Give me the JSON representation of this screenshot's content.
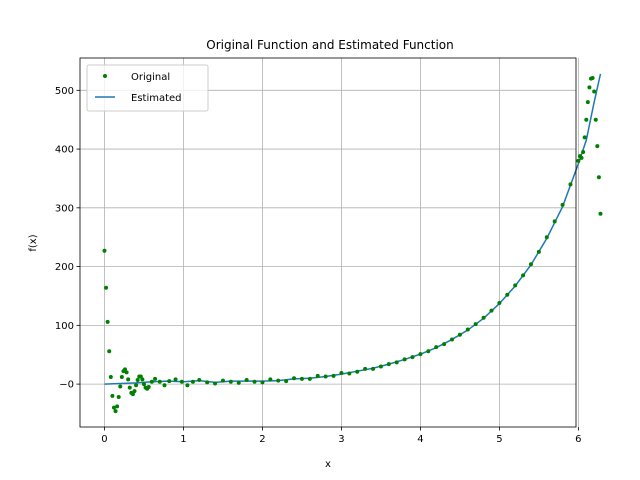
{
  "chart_data": {
    "type": "line",
    "title": "Original Function and Estimated Function",
    "xlabel": "x",
    "ylabel": "f(x)",
    "xlim": [
      -0.31,
      5.97
    ],
    "ylim": [
      -73,
      555
    ],
    "xticks": [
      "0",
      "1",
      "2",
      "3",
      "4",
      "5",
      "6"
    ],
    "yticks": [
      "−0",
      "100",
      "200",
      "300",
      "400",
      "500"
    ],
    "grid": true,
    "legend_position": "upper-left",
    "colors": {
      "original": "#008000",
      "estimated": "#1f77b4"
    },
    "series": [
      {
        "name": "Original",
        "style": "markers",
        "points": [
          [
            0.0,
            227
          ],
          [
            0.02,
            164
          ],
          [
            0.04,
            106
          ],
          [
            0.06,
            56
          ],
          [
            0.08,
            12
          ],
          [
            0.1,
            -20
          ],
          [
            0.12,
            -40
          ],
          [
            0.14,
            -46
          ],
          [
            0.16,
            -38
          ],
          [
            0.18,
            -22
          ],
          [
            0.2,
            -4
          ],
          [
            0.22,
            12
          ],
          [
            0.24,
            22
          ],
          [
            0.26,
            25
          ],
          [
            0.28,
            20
          ],
          [
            0.3,
            8
          ],
          [
            0.32,
            -6
          ],
          [
            0.34,
            -15
          ],
          [
            0.36,
            -17
          ],
          [
            0.38,
            -12
          ],
          [
            0.4,
            -2
          ],
          [
            0.42,
            7
          ],
          [
            0.44,
            13
          ],
          [
            0.46,
            13
          ],
          [
            0.48,
            8
          ],
          [
            0.5,
            0
          ],
          [
            0.52,
            -6
          ],
          [
            0.54,
            -8
          ],
          [
            0.56,
            -5
          ],
          [
            0.6,
            4
          ],
          [
            0.64,
            9
          ],
          [
            0.7,
            4
          ],
          [
            0.76,
            -2
          ],
          [
            0.82,
            5
          ],
          [
            0.9,
            8
          ],
          [
            0.98,
            4
          ],
          [
            1.05,
            -2
          ],
          [
            1.12,
            4
          ],
          [
            1.2,
            7
          ],
          [
            1.3,
            3
          ],
          [
            1.4,
            1
          ],
          [
            1.5,
            6
          ],
          [
            1.6,
            4
          ],
          [
            1.7,
            2
          ],
          [
            1.8,
            7
          ],
          [
            1.9,
            4
          ],
          [
            2.0,
            3
          ],
          [
            2.1,
            8
          ],
          [
            2.2,
            6
          ],
          [
            2.3,
            5
          ],
          [
            2.4,
            10
          ],
          [
            2.5,
            9
          ],
          [
            2.6,
            9
          ],
          [
            2.7,
            14
          ],
          [
            2.8,
            13
          ],
          [
            2.9,
            14
          ],
          [
            3.0,
            19
          ],
          [
            3.1,
            18
          ],
          [
            3.2,
            21
          ],
          [
            3.3,
            26
          ],
          [
            3.4,
            26
          ],
          [
            3.5,
            30
          ],
          [
            3.6,
            34
          ],
          [
            3.7,
            37
          ],
          [
            3.8,
            42
          ],
          [
            3.9,
            46
          ],
          [
            4.0,
            51
          ],
          [
            4.1,
            56
          ],
          [
            4.2,
            63
          ],
          [
            4.3,
            68
          ],
          [
            4.4,
            76
          ],
          [
            4.5,
            84
          ],
          [
            4.6,
            93
          ],
          [
            4.7,
            102
          ],
          [
            4.8,
            113
          ],
          [
            4.9,
            125
          ],
          [
            5.0,
            138
          ],
          [
            5.1,
            152
          ],
          [
            5.2,
            168
          ],
          [
            5.3,
            185
          ],
          [
            5.4,
            204
          ],
          [
            5.5,
            225
          ],
          [
            5.6,
            250
          ],
          [
            5.7,
            277
          ],
          [
            5.8,
            305
          ],
          [
            5.9,
            340
          ],
          [
            6.0,
            380
          ],
          [
            6.02,
            388
          ],
          [
            6.04,
            385
          ],
          [
            6.06,
            395
          ],
          [
            6.08,
            420
          ],
          [
            6.1,
            450
          ],
          [
            6.12,
            480
          ],
          [
            6.14,
            505
          ],
          [
            6.16,
            520
          ],
          [
            6.18,
            521
          ],
          [
            6.2,
            498
          ],
          [
            6.22,
            450
          ],
          [
            6.24,
            405
          ],
          [
            6.26,
            352
          ],
          [
            6.28,
            290
          ]
        ]
      },
      {
        "name": "Estimated",
        "style": "line",
        "points": [
          [
            0.0,
            0
          ],
          [
            0.2,
            1
          ],
          [
            0.4,
            2
          ],
          [
            0.6,
            4
          ],
          [
            0.8,
            5
          ],
          [
            1.0,
            4
          ],
          [
            1.2,
            6
          ],
          [
            1.4,
            3
          ],
          [
            1.6,
            5
          ],
          [
            1.8,
            5
          ],
          [
            2.0,
            5
          ],
          [
            2.2,
            6
          ],
          [
            2.4,
            9
          ],
          [
            2.6,
            10
          ],
          [
            2.8,
            13
          ],
          [
            3.0,
            17
          ],
          [
            3.2,
            22
          ],
          [
            3.4,
            27
          ],
          [
            3.6,
            34
          ],
          [
            3.8,
            42
          ],
          [
            4.0,
            51
          ],
          [
            4.2,
            62
          ],
          [
            4.4,
            76
          ],
          [
            4.6,
            92
          ],
          [
            4.8,
            112
          ],
          [
            5.0,
            137
          ],
          [
            5.2,
            167
          ],
          [
            5.4,
            203
          ],
          [
            5.6,
            248
          ],
          [
            5.8,
            302
          ],
          [
            6.0,
            375
          ],
          [
            6.1,
            415
          ],
          [
            6.2,
            480
          ],
          [
            6.28,
            528
          ]
        ]
      }
    ]
  }
}
